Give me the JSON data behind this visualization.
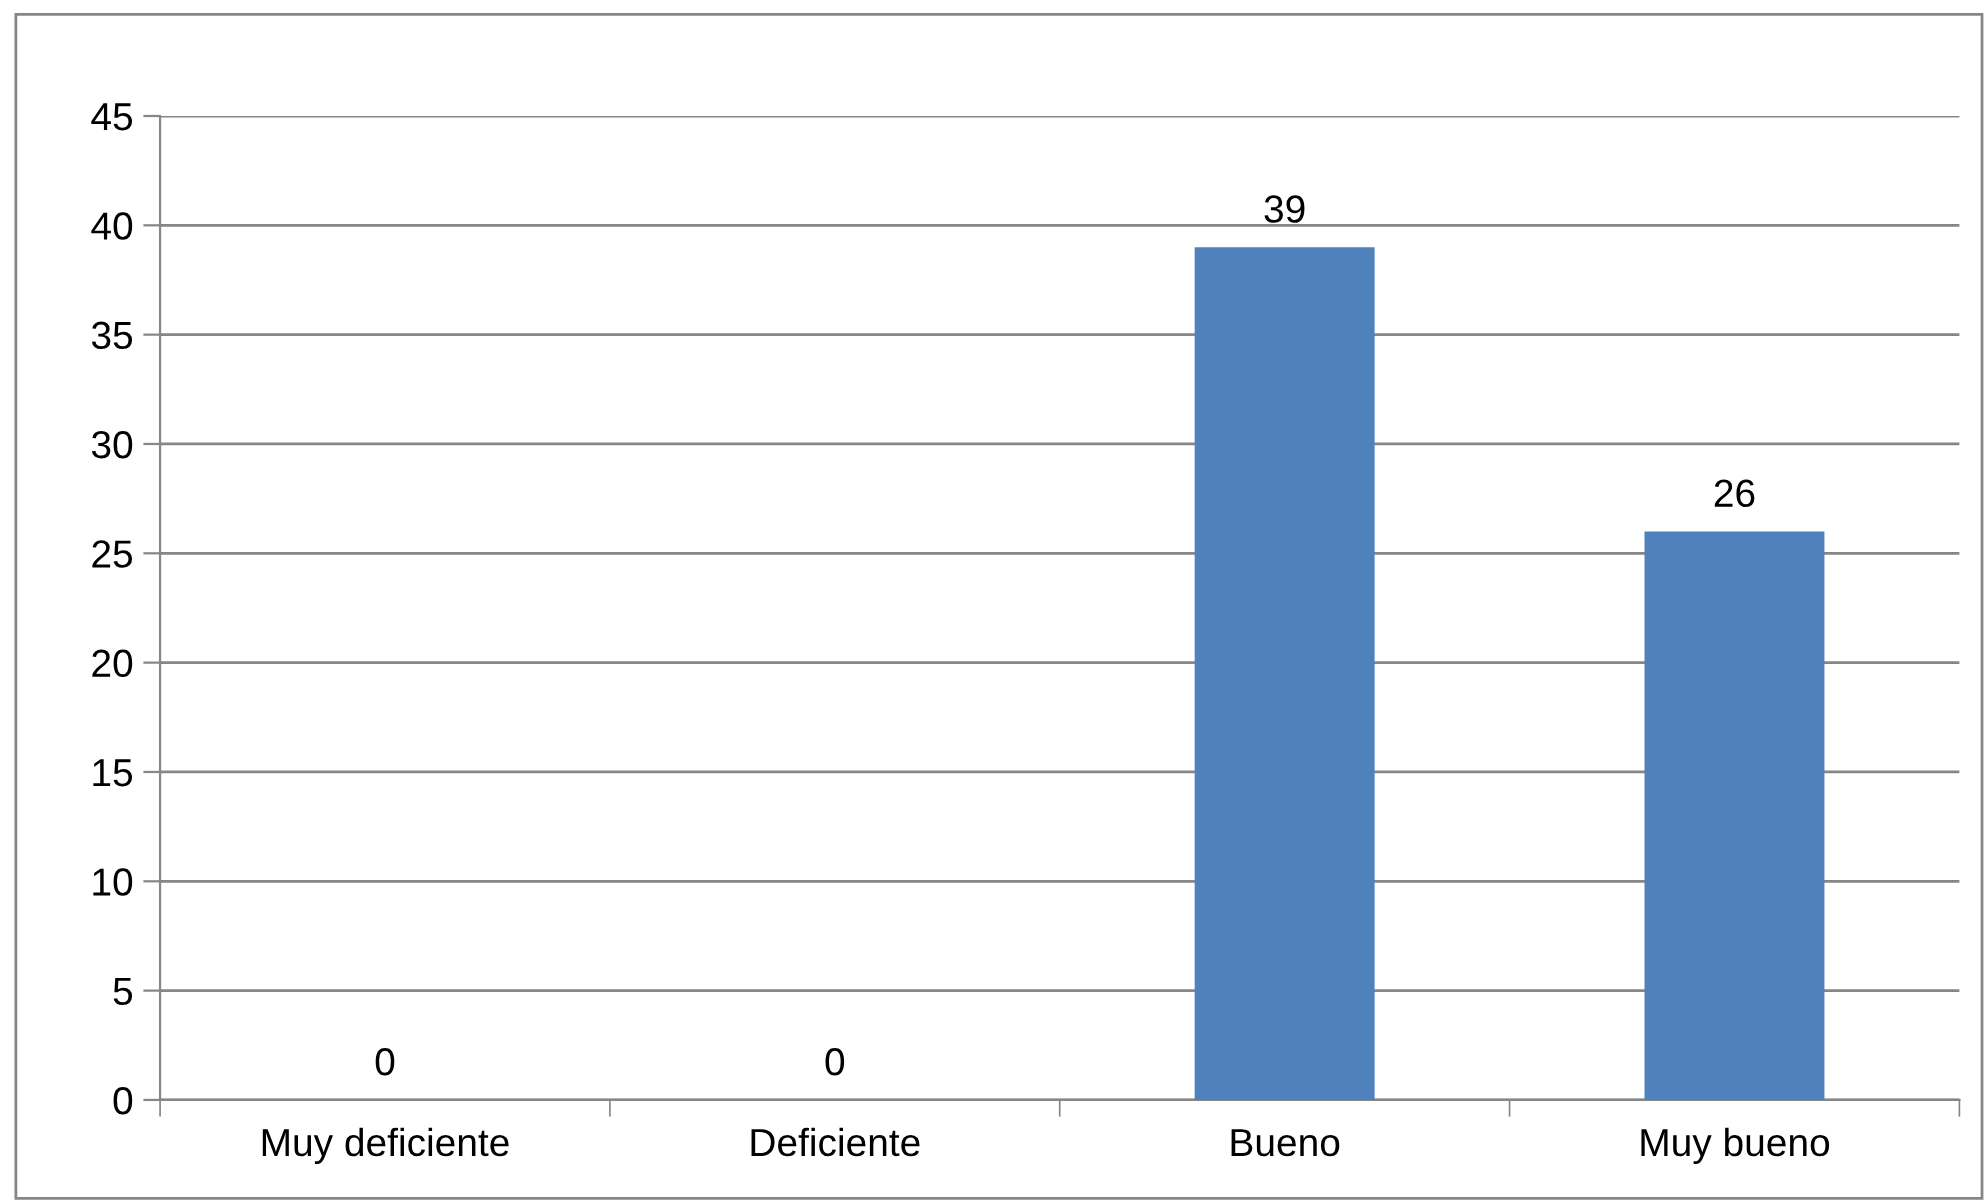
{
  "chart_data": {
    "type": "bar",
    "categories": [
      "Muy deficiente",
      "Deficiente",
      "Bueno",
      "Muy bueno"
    ],
    "values": [
      0,
      0,
      39,
      26
    ],
    "color": "#4f81bd",
    "ylim": [
      0,
      45
    ],
    "yticks": [
      0,
      5,
      10,
      15,
      20,
      25,
      30,
      35,
      40,
      45
    ],
    "grid": "y",
    "data_labels": true
  }
}
